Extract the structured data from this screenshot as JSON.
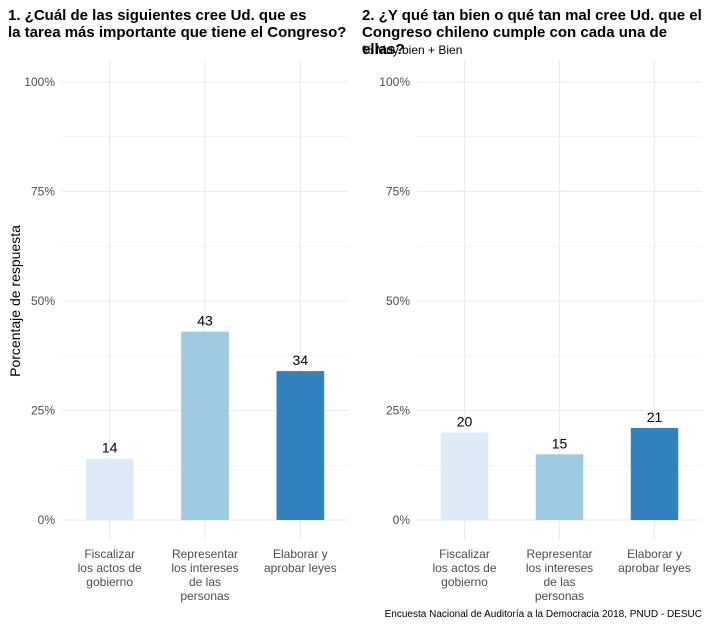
{
  "caption": "Encuesta Nacional de Auditoría a la Democracia 2018, PNUD - DESUC",
  "colors": {
    "light": "#deebf7",
    "mid": "#9ecae1",
    "dark": "#3182bd",
    "grid": "#ebebeb"
  },
  "chart_data": [
    {
      "type": "bar",
      "title": "1. ¿Cuál de las siguientes cree Ud. que es\nla tarea más importante que tiene el Congreso?",
      "subtitle": "",
      "ylabel": "Porcentaje de respuesta",
      "xlabel": "",
      "ylim": [
        0,
        100
      ],
      "yticks": [
        "0%",
        "25%",
        "50%",
        "75%",
        "100%"
      ],
      "categories": [
        "Fiscalizar\nlos actos de\ngobierno",
        "Representar\nlos intereses\nde las\npersonas",
        "Elaborar y\naprobar leyes"
      ],
      "values": [
        14,
        43,
        34
      ],
      "labels": [
        "14",
        "43",
        "34"
      ],
      "grid": true
    },
    {
      "type": "bar",
      "title": "2. ¿Y qué tan bien o qué tan mal cree Ud. que el\nCongreso chileno cumple con cada una de ellas?",
      "subtitle": "% Muy bien + Bien",
      "ylabel": "",
      "xlabel": "",
      "ylim": [
        0,
        100
      ],
      "yticks": [
        "0%",
        "25%",
        "50%",
        "75%",
        "100%"
      ],
      "categories": [
        "Fiscalizar\nlos actos de\ngobierno",
        "Representar\nlos intereses\nde las\npersonas",
        "Elaborar y\naprobar leyes"
      ],
      "values": [
        20,
        15,
        21
      ],
      "labels": [
        "20",
        "15",
        "21"
      ],
      "grid": true
    }
  ]
}
